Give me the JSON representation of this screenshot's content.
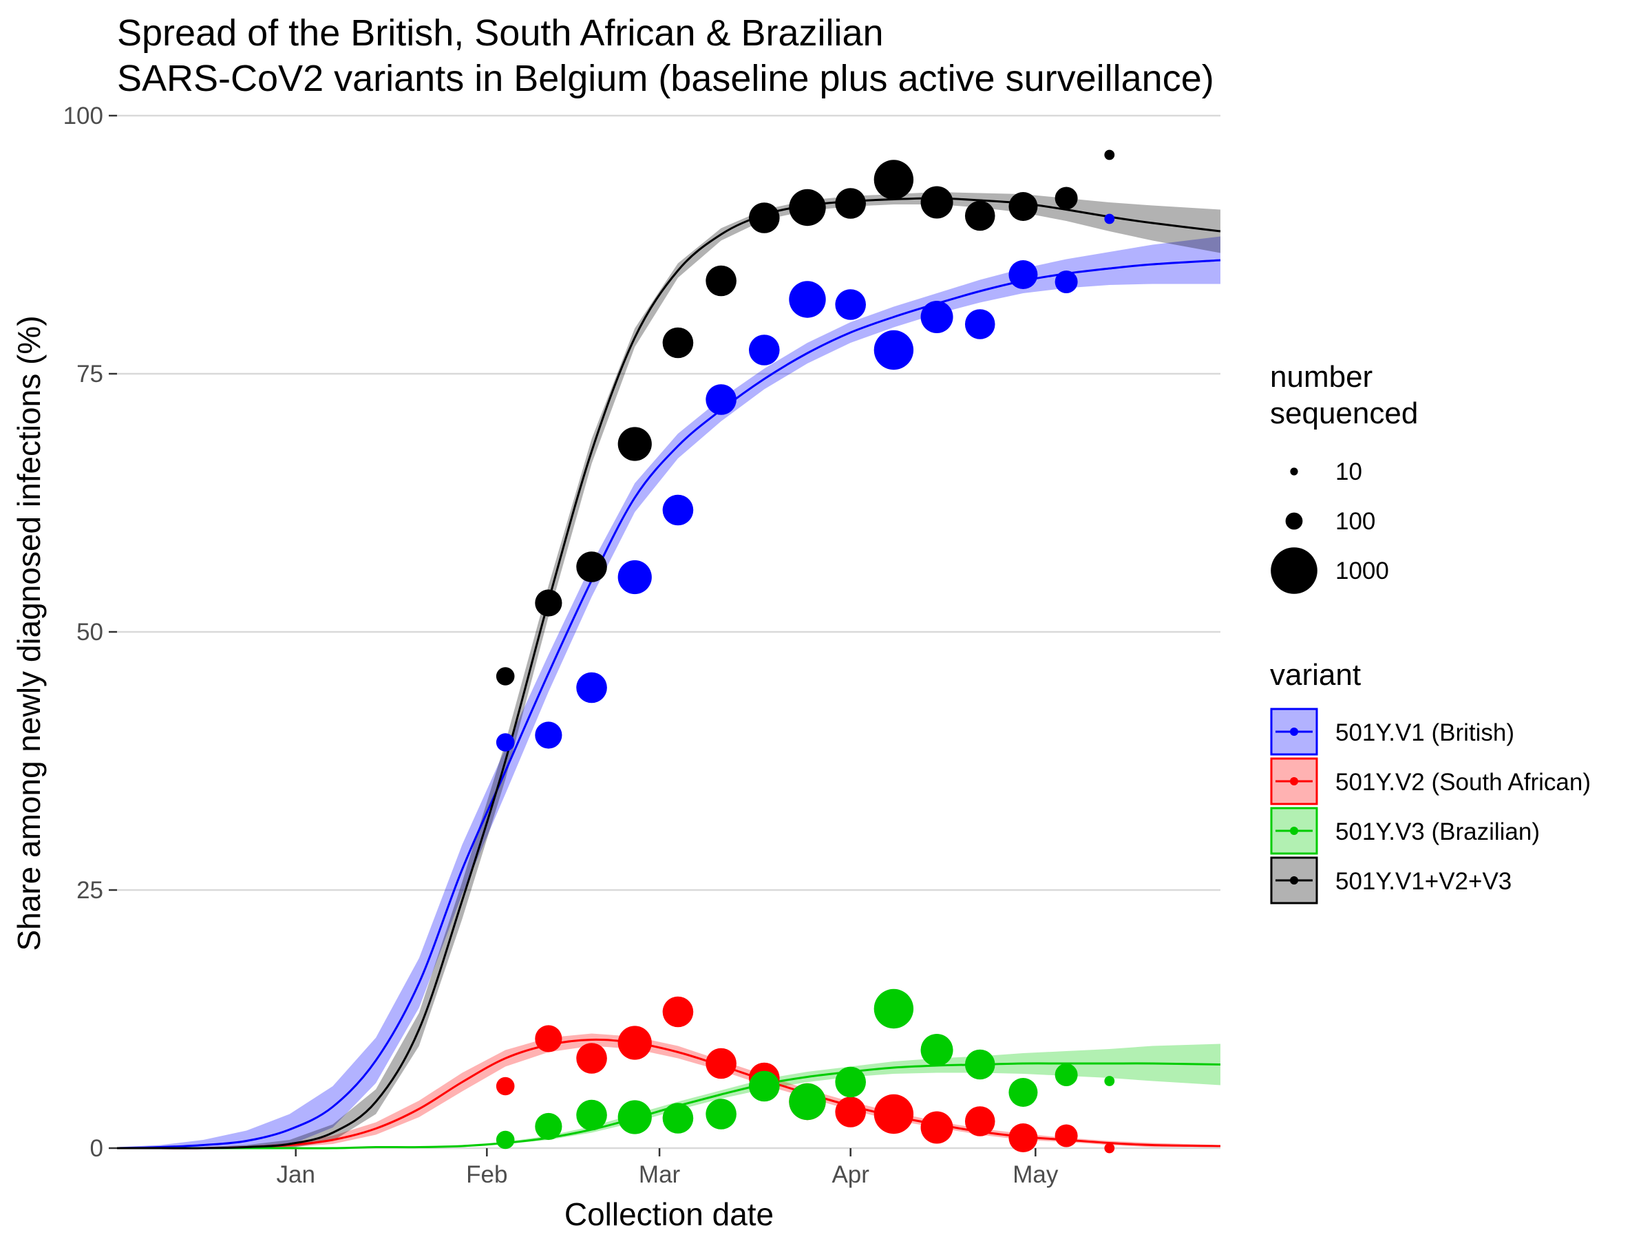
{
  "chart_data": {
    "type": "scatter",
    "title_lines": [
      "Spread of the British, South African & Brazilian",
      "SARS-CoV2 variants in Belgium (baseline plus active surveillance)"
    ],
    "xlabel": "Collection date",
    "ylabel": "Share among newly diagnosed infections (%)",
    "ylim": [
      0,
      100
    ],
    "y_ticks": [
      0,
      25,
      50,
      75,
      100
    ],
    "x_ticks": [
      {
        "label": "Jan",
        "date": "2021-01-01"
      },
      {
        "label": "Feb",
        "date": "2021-02-01"
      },
      {
        "label": "Mar",
        "date": "2021-03-01"
      },
      {
        "label": "Apr",
        "date": "2021-04-01"
      },
      {
        "label": "May",
        "date": "2021-05-01"
      }
    ],
    "xlim": [
      "2020-12-03",
      "2021-05-31"
    ],
    "grid": "horizontal major",
    "size_legend": {
      "title_lines": [
        "number",
        "sequenced"
      ],
      "entries": [
        {
          "label": "10",
          "n": 10
        },
        {
          "label": "100",
          "n": 100
        },
        {
          "label": "1000",
          "n": 1000
        }
      ]
    },
    "color_legend": {
      "title": "variant",
      "placement": "right"
    },
    "sample_dates": [
      "2021-02-04",
      "2021-02-11",
      "2021-02-18",
      "2021-02-25",
      "2021-03-04",
      "2021-03-11",
      "2021-03-18",
      "2021-03-25",
      "2021-04-01",
      "2021-04-08",
      "2021-04-15",
      "2021-04-22",
      "2021-04-29",
      "2021-05-06",
      "2021-05-13"
    ],
    "sample_sizes": [
      120,
      300,
      400,
      500,
      400,
      400,
      400,
      600,
      400,
      700,
      450,
      380,
      350,
      200,
      25
    ],
    "fit_dates": [
      "2020-12-03",
      "2020-12-10",
      "2020-12-17",
      "2020-12-24",
      "2020-12-31",
      "2021-01-07",
      "2021-01-14",
      "2021-01-21",
      "2021-01-28",
      "2021-02-04",
      "2021-02-11",
      "2021-02-18",
      "2021-02-25",
      "2021-03-04",
      "2021-03-11",
      "2021-03-18",
      "2021-03-25",
      "2021-04-01",
      "2021-04-08",
      "2021-04-15",
      "2021-04-22",
      "2021-04-29",
      "2021-05-06",
      "2021-05-13",
      "2021-05-20",
      "2021-05-31"
    ],
    "series": [
      {
        "name": "501Y.V1 (British)",
        "color": "#0000ff",
        "points": [
          39.3,
          40.0,
          44.6,
          55.3,
          61.8,
          72.5,
          77.3,
          82.2,
          81.7,
          77.3,
          80.5,
          79.8,
          84.6,
          83.9,
          90.0
        ],
        "fit": [
          0.0,
          0.1,
          0.3,
          0.7,
          1.8,
          4.0,
          8.5,
          16.0,
          27.0,
          36.5,
          46.0,
          55.0,
          63.0,
          68.0,
          71.5,
          74.5,
          77.0,
          79.0,
          80.5,
          81.8,
          83.0,
          84.0,
          84.7,
          85.2,
          85.6,
          86.0
        ],
        "band": [
          0.1,
          0.2,
          0.5,
          1.0,
          1.5,
          2.0,
          2.2,
          2.4,
          2.4,
          2.2,
          1.8,
          1.6,
          1.4,
          1.2,
          1.1,
          1.0,
          1.0,
          1.0,
          1.0,
          1.0,
          1.1,
          1.2,
          1.4,
          1.6,
          1.9,
          2.3
        ]
      },
      {
        "name": "501Y.V2 (South African)",
        "color": "#ff0000",
        "points": [
          6.0,
          10.6,
          8.7,
          10.2,
          13.2,
          8.2,
          6.8,
          4.5,
          3.5,
          3.3,
          2.0,
          2.6,
          1.0,
          1.2,
          0.0
        ],
        "fit": [
          0.0,
          0.0,
          0.0,
          0.1,
          0.3,
          0.8,
          1.9,
          3.8,
          6.4,
          8.7,
          10.0,
          10.5,
          10.2,
          9.3,
          8.0,
          6.6,
          5.3,
          4.1,
          3.1,
          2.3,
          1.6,
          1.1,
          0.8,
          0.5,
          0.3,
          0.2
        ],
        "band": [
          0.0,
          0.0,
          0.0,
          0.1,
          0.2,
          0.4,
          0.6,
          0.8,
          0.9,
          0.8,
          0.7,
          0.6,
          0.6,
          0.6,
          0.5,
          0.5,
          0.4,
          0.4,
          0.4,
          0.3,
          0.3,
          0.3,
          0.2,
          0.2,
          0.2,
          0.1
        ]
      },
      {
        "name": "501Y.V3 (Brazilian)",
        "color": "#00cc00",
        "points": [
          0.8,
          2.1,
          3.2,
          3.0,
          2.9,
          3.3,
          6.0,
          4.5,
          6.4,
          13.5,
          9.5,
          8.1,
          5.4,
          7.1,
          6.5
        ],
        "fit": [
          0.0,
          0.0,
          0.0,
          0.0,
          0.0,
          0.0,
          0.1,
          0.1,
          0.2,
          0.5,
          1.0,
          1.8,
          2.9,
          4.1,
          5.2,
          6.2,
          6.9,
          7.4,
          7.8,
          8.0,
          8.1,
          8.2,
          8.2,
          8.2,
          8.2,
          8.1
        ],
        "band": [
          0.0,
          0.0,
          0.0,
          0.0,
          0.0,
          0.0,
          0.0,
          0.1,
          0.1,
          0.1,
          0.2,
          0.3,
          0.4,
          0.4,
          0.4,
          0.5,
          0.5,
          0.5,
          0.6,
          0.7,
          0.8,
          1.0,
          1.2,
          1.4,
          1.7,
          2.0
        ]
      },
      {
        "name": "501Y.V1+V2+V3",
        "color": "#000000",
        "points": [
          45.7,
          52.8,
          56.3,
          68.2,
          78.0,
          84.0,
          90.1,
          91.1,
          91.5,
          93.8,
          91.6,
          90.3,
          91.2,
          92.0,
          96.2
        ],
        "fit": [
          0.0,
          0.0,
          0.0,
          0.1,
          0.4,
          1.5,
          4.5,
          11.5,
          24.0,
          37.5,
          53.0,
          67.5,
          78.5,
          85.0,
          88.5,
          90.4,
          91.3,
          91.7,
          91.9,
          92.0,
          91.8,
          91.5,
          90.9,
          90.2,
          89.6,
          88.8
        ],
        "band": [
          0.0,
          0.0,
          0.1,
          0.2,
          0.4,
          0.8,
          1.2,
          1.6,
          1.8,
          1.8,
          1.5,
          1.2,
          0.9,
          0.7,
          0.6,
          0.5,
          0.5,
          0.5,
          0.5,
          0.6,
          0.7,
          0.9,
          1.1,
          1.4,
          1.7,
          2.1
        ]
      }
    ]
  }
}
